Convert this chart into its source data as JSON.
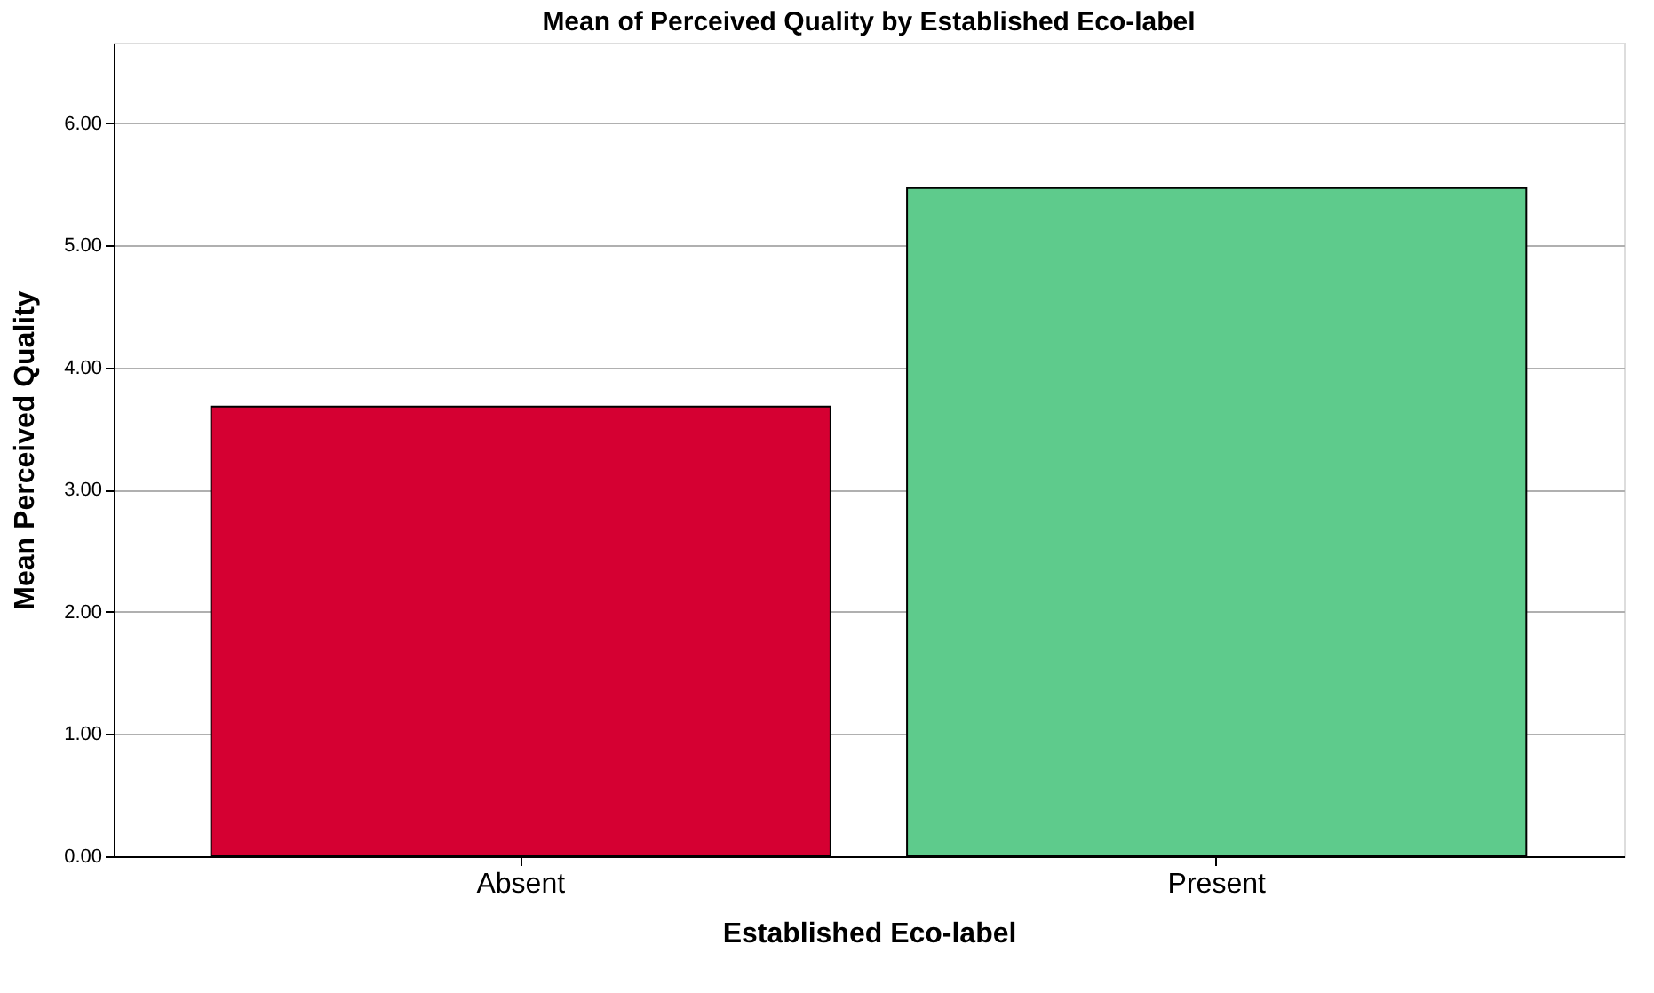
{
  "chart_data": {
    "type": "bar",
    "title": "Mean of Perceived Quality by Established Eco-label",
    "xlabel": "Established Eco-label",
    "ylabel": "Mean Perceived Quality",
    "categories": [
      "Absent",
      "Present"
    ],
    "values": [
      3.68,
      5.47
    ],
    "colors": [
      "#d50032",
      "#5ecb8c"
    ],
    "ylim": [
      0,
      6.66
    ],
    "yticks": [
      {
        "value": 0,
        "label": "0.00"
      },
      {
        "value": 1,
        "label": "1.00"
      },
      {
        "value": 2,
        "label": "2.00"
      },
      {
        "value": 3,
        "label": "3.00"
      },
      {
        "value": 4,
        "label": "4.00"
      },
      {
        "value": 5,
        "label": "5.00"
      },
      {
        "value": 6,
        "label": "6.00"
      }
    ],
    "grid": "y",
    "legend": false
  }
}
